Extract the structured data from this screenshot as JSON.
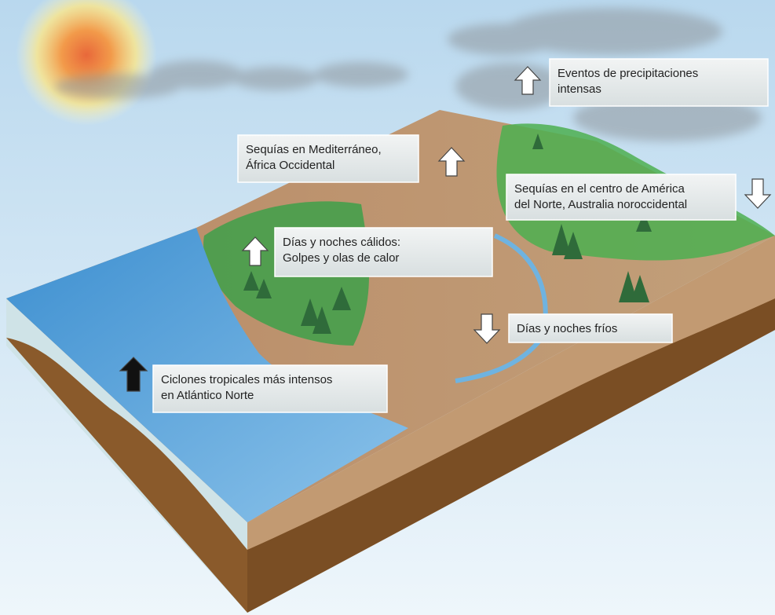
{
  "labels": [
    {
      "lines": [
        "Eventos de precipitaciones",
        "intensas"
      ]
    },
    {
      "lines": [
        "Sequías en Mediterráneo,",
        "África Occidental"
      ]
    },
    {
      "lines": [
        "Sequías en el centro de América",
        "del Norte, Australia noroccidental"
      ]
    },
    {
      "lines": [
        "Días y noches cálidos:",
        "Golpes y olas de calor"
      ]
    },
    {
      "lines": [
        "Días y noches fríos"
      ]
    },
    {
      "lines": [
        "Ciclones tropicales más intensos",
        "en Atlántico Norte"
      ]
    }
  ]
}
